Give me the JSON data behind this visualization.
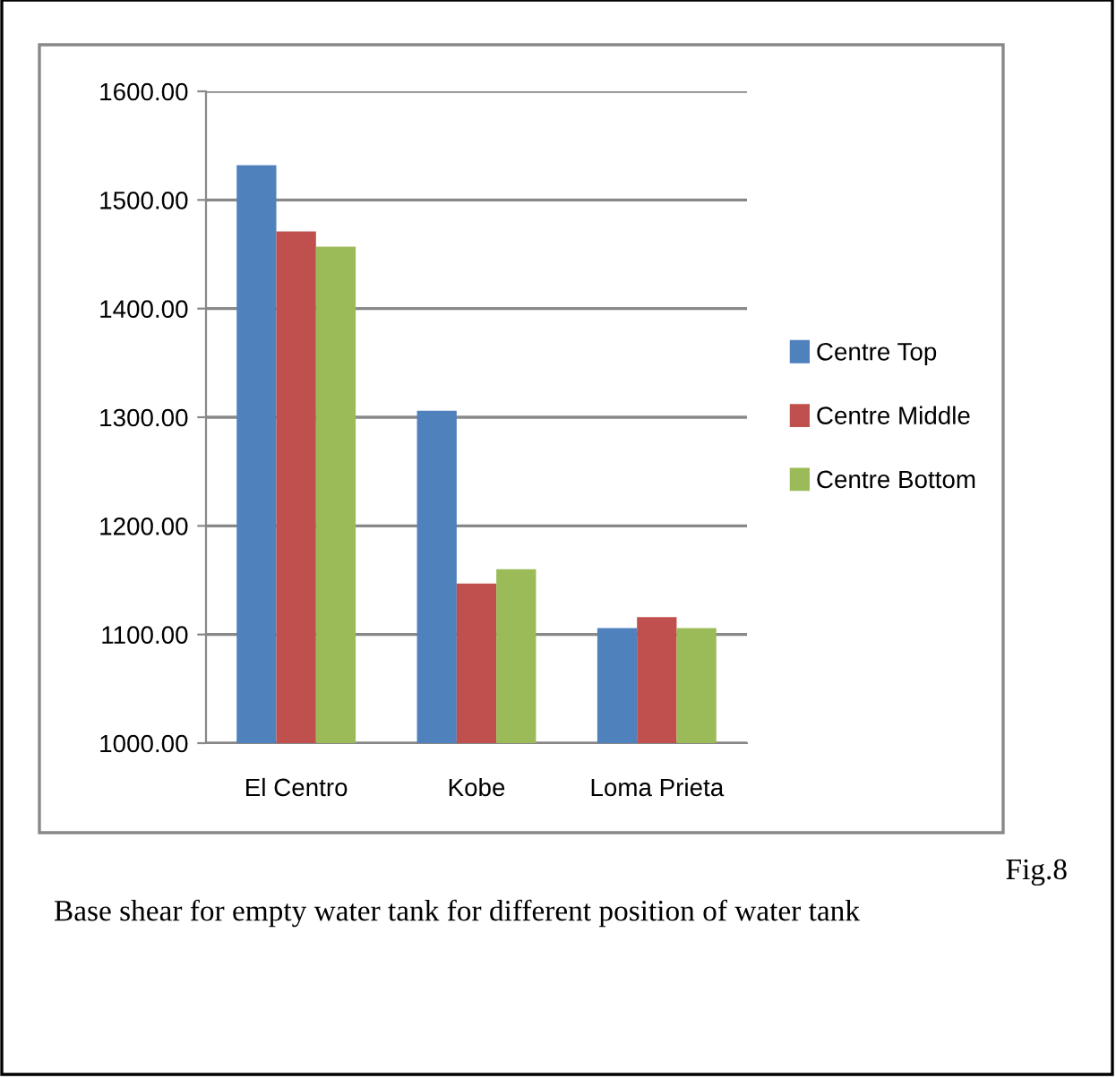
{
  "chart_data": {
    "type": "bar",
    "categories": [
      "El Centro",
      "Kobe",
      "Loma Prieta"
    ],
    "series": [
      {
        "name": "Centre Top",
        "color": "#4f81bd",
        "values": [
          1532,
          1306,
          1106
        ]
      },
      {
        "name": "Centre Middle",
        "color": "#c0504d",
        "values": [
          1471,
          1147,
          1116
        ]
      },
      {
        "name": "Centre Bottom",
        "color": "#9bbb59",
        "values": [
          1457,
          1160,
          1106
        ]
      }
    ],
    "ylim": [
      1000,
      1600
    ],
    "yticks": [
      {
        "value": 1000,
        "label": "1000.00"
      },
      {
        "value": 1100,
        "label": "1100.00"
      },
      {
        "value": 1200,
        "label": "1200.00"
      },
      {
        "value": 1300,
        "label": "1300.00"
      },
      {
        "value": 1400,
        "label": "1400.00"
      },
      {
        "value": 1500,
        "label": "1500.00"
      },
      {
        "value": 1600,
        "label": "1600.00"
      }
    ],
    "grid": "y",
    "legend": "right",
    "annotations": [
      "Fig.8",
      "Base shear for empty water tank for different position of water tank"
    ]
  }
}
